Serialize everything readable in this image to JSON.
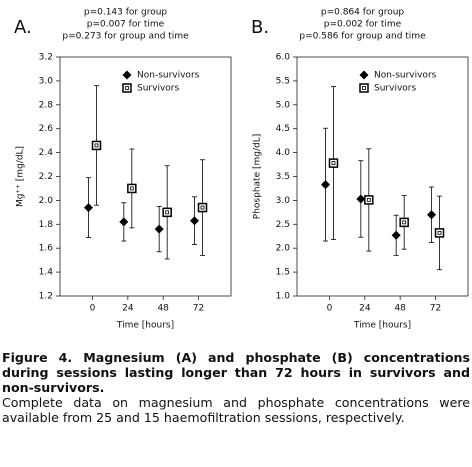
{
  "chart_data": [
    {
      "type": "errorbar",
      "panel": "A.",
      "annotations": [
        "p=0.143 for group",
        "p=0.007 for time",
        "p=0.273 for group and time"
      ],
      "y_label": "Mg⁺⁺ [mg/dL]",
      "x_label": "Time [hours]",
      "categories": [
        "0",
        "24",
        "48",
        "72"
      ],
      "series": [
        {
          "name": "Non-survivors",
          "color": "#000000",
          "marker": "diamond",
          "values": [
            1.94,
            1.82,
            1.76,
            1.83
          ],
          "errors": [
            0.25,
            0.16,
            0.19,
            0.2
          ]
        },
        {
          "name": "Survivors",
          "color": "#000000",
          "marker": "square",
          "values": [
            2.46,
            2.1,
            1.9,
            1.94
          ],
          "errors": [
            0.5,
            0.33,
            0.39,
            0.4
          ]
        }
      ],
      "ylim": [
        1.2,
        3.2
      ],
      "yticks": [
        1.2,
        1.4,
        1.6,
        1.8,
        {
          "value": 2,
          "label": "2.0"
        },
        2.2,
        2.4,
        2.6,
        2.8,
        {
          "value": 3,
          "label": "3.0"
        },
        3.2
      ],
      "legend": "upper right",
      "grid": false
    },
    {
      "type": "errorbar",
      "panel": "B.",
      "annotations": [
        "p=0.864 for group",
        "p=0.002 for time",
        "p=0.586 for group and time"
      ],
      "y_label": "Phosphate [mg/dL]",
      "x_label": "Time [hours]",
      "categories": [
        "0",
        "24",
        "48",
        "72"
      ],
      "series": [
        {
          "name": "Non-survivors",
          "color": "#000000",
          "marker": "diamond",
          "values": [
            3.33,
            3.03,
            2.27,
            2.7
          ],
          "errors": [
            1.18,
            0.8,
            0.42,
            0.58
          ]
        },
        {
          "name": "Survivors",
          "color": "#000000",
          "marker": "square",
          "values": [
            3.78,
            3.01,
            2.54,
            2.32
          ],
          "errors": [
            1.6,
            1.07,
            0.56,
            0.77
          ]
        }
      ],
      "ylim": [
        1,
        6
      ],
      "yticks": [
        {
          "value": 1,
          "label": "1.0"
        },
        1.5,
        {
          "value": 2,
          "label": "2.0"
        },
        2.5,
        {
          "value": 3,
          "label": "3.0"
        },
        3.5,
        {
          "value": 4,
          "label": "4.0"
        },
        4.5,
        {
          "value": 5,
          "label": "5.0"
        },
        5.5,
        {
          "value": 6,
          "label": "6.0"
        }
      ],
      "legend": "upper right",
      "grid": false
    }
  ],
  "caption": {
    "title": "Figure 4. Magnesium (A) and phosphate (B) concentrations during sessions lasting longer than 72 hours in survivors and non-survivors.",
    "text": "Complete data on magnesium and phosphate concentrations were available from 25 and 15 haemofiltration sessions, respectively."
  }
}
